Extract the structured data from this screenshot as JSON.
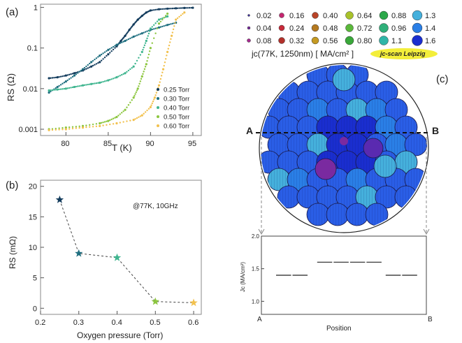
{
  "chart_data": [
    {
      "panel_label": "(a)",
      "type": "scatter",
      "xlabel": "T (K)",
      "ylabel": "RS (Ω)",
      "xlim": [
        77,
        96
      ],
      "ylim": [
        0.0007,
        1.2
      ],
      "yscale": "log",
      "xticks": [
        "80",
        "85",
        "90",
        "95"
      ],
      "yticks": [
        "0.001",
        "0.01",
        "0.1",
        "1"
      ],
      "legend_position": "bottom-right",
      "series": [
        {
          "name": "0.25 Torr",
          "color": "#123b5c",
          "x": [
            78,
            79,
            80,
            81,
            82,
            83,
            84,
            85,
            86,
            86.5,
            87,
            87.5,
            88,
            88.5,
            89,
            89.5,
            90,
            91,
            92,
            93,
            94,
            95
          ],
          "y": [
            0.018,
            0.019,
            0.021,
            0.024,
            0.028,
            0.035,
            0.045,
            0.07,
            0.11,
            0.15,
            0.2,
            0.28,
            0.38,
            0.5,
            0.62,
            0.75,
            0.84,
            0.9,
            0.93,
            0.95,
            0.97,
            0.98
          ]
        },
        {
          "name": "0.30 Torr",
          "color": "#1f6f80",
          "x": [
            78,
            79,
            80,
            81,
            82,
            83,
            84,
            85,
            86,
            87,
            88,
            89,
            90,
            91,
            92,
            93
          ],
          "y": [
            0.008,
            0.011,
            0.015,
            0.021,
            0.03,
            0.045,
            0.065,
            0.09,
            0.12,
            0.15,
            0.19,
            0.23,
            0.28,
            0.32,
            0.37,
            0.42
          ]
        },
        {
          "name": "0.40 Torr",
          "color": "#3fb58f",
          "x": [
            78,
            79,
            80,
            81,
            82,
            83,
            84,
            85,
            86,
            87,
            88,
            89,
            89.5,
            90,
            91,
            92
          ],
          "y": [
            0.009,
            0.0095,
            0.01,
            0.011,
            0.012,
            0.013,
            0.014,
            0.016,
            0.019,
            0.024,
            0.035,
            0.08,
            0.15,
            0.3,
            0.5,
            0.6
          ]
        },
        {
          "name": "0.50 Torr",
          "color": "#8cc63f",
          "x": [
            78,
            80,
            82,
            84,
            85,
            86,
            87,
            88,
            88.5,
            89,
            89.5,
            90,
            91,
            92
          ],
          "y": [
            0.001,
            0.0011,
            0.0012,
            0.0014,
            0.0016,
            0.002,
            0.003,
            0.006,
            0.01,
            0.02,
            0.04,
            0.1,
            0.4,
            0.7
          ]
        },
        {
          "name": "0.60 Torr",
          "color": "#f2c14e",
          "x": [
            78,
            80,
            82,
            84,
            86,
            88,
            89,
            90,
            90.5,
            91,
            91.5,
            92,
            92.5,
            93,
            94
          ],
          "y": [
            0.00095,
            0.001,
            0.0011,
            0.0012,
            0.0014,
            0.0017,
            0.0022,
            0.0035,
            0.006,
            0.012,
            0.03,
            0.08,
            0.2,
            0.5,
            0.75
          ]
        }
      ]
    },
    {
      "panel_label": "(b)",
      "type": "line",
      "xlabel": "Oxygen pressure (Torr)",
      "ylabel": "RS (mΩ)",
      "annotation": "@77K, 10GHz",
      "xlim": [
        0.2,
        0.62
      ],
      "ylim": [
        -1,
        21
      ],
      "xticks": [
        "0.2",
        "0.3",
        "0.4",
        "0.5",
        "0.6"
      ],
      "yticks": [
        "0",
        "5",
        "10",
        "15",
        "20"
      ],
      "x": [
        0.25,
        0.3,
        0.4,
        0.5,
        0.6
      ],
      "y": [
        17.8,
        9.0,
        8.3,
        1.1,
        0.9
      ],
      "colors": [
        "#123b5c",
        "#1f6f80",
        "#3fb58f",
        "#8cc63f",
        "#f2c14e"
      ]
    },
    {
      "panel_label": "(c)",
      "type": "heatmap",
      "legend_title": "jc(77K, 1250nm) [ MA/cm²  ]",
      "legend_badge": "jc-scan Leipzig",
      "legend": [
        {
          "value": "0.02",
          "color": "#3a2a9a"
        },
        {
          "value": "0.04",
          "color": "#7a2aa0"
        },
        {
          "value": "0.08",
          "color": "#a52a8f"
        },
        {
          "value": "0.16",
          "color": "#c4256f"
        },
        {
          "value": "0.24",
          "color": "#c82a3a"
        },
        {
          "value": "0.32",
          "color": "#b2302a"
        },
        {
          "value": "0.40",
          "color": "#b84428"
        },
        {
          "value": "0.48",
          "color": "#b57a20"
        },
        {
          "value": "0.56",
          "color": "#c59a22"
        },
        {
          "value": "0.64",
          "color": "#a8c22a"
        },
        {
          "value": "0.72",
          "color": "#5ab83a"
        },
        {
          "value": "0.80",
          "color": "#3aa83a"
        },
        {
          "value": "0.88",
          "color": "#2ca84a"
        },
        {
          "value": "0.96",
          "color": "#2fb07a"
        },
        {
          "value": "1.1",
          "color": "#2fb6a8"
        },
        {
          "value": "1.3",
          "color": "#45b0dc"
        },
        {
          "value": "1.4",
          "color": "#2a7fe6"
        },
        {
          "value": "1.6",
          "color": "#1a2ecf"
        }
      ],
      "cut_labels": [
        "A",
        "B"
      ]
    },
    {
      "type": "line",
      "xlabel": "Position",
      "ylabel": "Jc (MA/cm²)",
      "ylim": [
        0.8,
        2.0
      ],
      "yticks": [
        "1.0",
        "1.5",
        "2.0"
      ],
      "x_end_labels": [
        "A",
        "B"
      ],
      "segments": [
        {
          "x0": 0.0,
          "x1": 0.12,
          "y": 1.4
        },
        {
          "x0": 0.12,
          "x1": 0.24,
          "y": 1.4
        },
        {
          "x0": 0.3,
          "x1": 0.42,
          "y": 1.6
        },
        {
          "x0": 0.42,
          "x1": 0.54,
          "y": 1.6
        },
        {
          "x0": 0.54,
          "x1": 0.66,
          "y": 1.6
        },
        {
          "x0": 0.66,
          "x1": 0.78,
          "y": 1.6
        },
        {
          "x0": 0.8,
          "x1": 0.92,
          "y": 1.4
        },
        {
          "x0": 0.92,
          "x1": 1.04,
          "y": 1.4
        }
      ]
    }
  ]
}
